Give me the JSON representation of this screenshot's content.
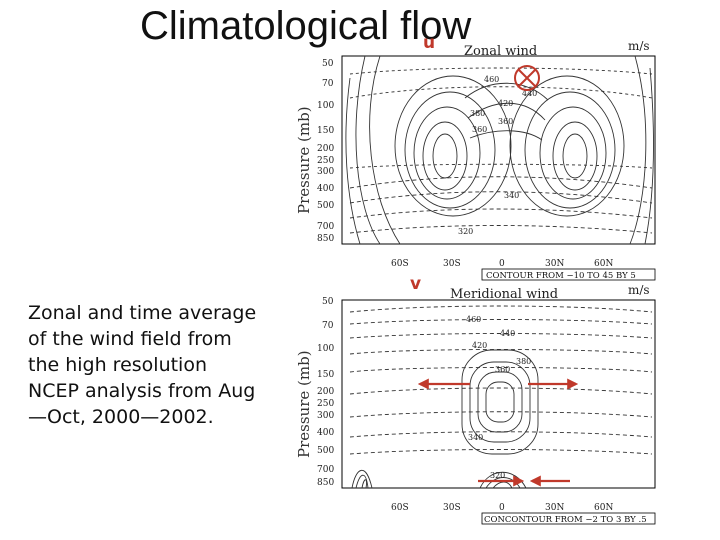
{
  "title": "Climatological flow",
  "caption_lines": [
    "Zonal and time average",
    "of the wind field from",
    "the high resolution",
    "NCEP analysis from Aug",
    "—Oct, 2000—2002."
  ],
  "markers": {
    "top": "u",
    "bottom": "v"
  },
  "panels": [
    {
      "heading": "Zonal wind",
      "units": "m/s",
      "ylabel": "Pressure (mb)",
      "yticks": [
        "50",
        "70",
        "100",
        "150",
        "200",
        "250",
        "300",
        "400",
        "500",
        "700",
        "850"
      ],
      "xticks": [
        "60S",
        "30S",
        "0",
        "30N",
        "60N"
      ],
      "footer": "CONTOUR FROM −10 TO 45 BY 5",
      "contour_labels": [
        "460",
        "420",
        "380",
        "340",
        "320",
        "360",
        "440",
        "360"
      ]
    },
    {
      "heading": "Meridional wind",
      "units": "m/s",
      "ylabel": "Pressure (mb)",
      "yticks": [
        "50",
        "70",
        "100",
        "150",
        "200",
        "250",
        "300",
        "400",
        "500",
        "700",
        "850"
      ],
      "xticks": [
        "60S",
        "30S",
        "0",
        "30N",
        "60N"
      ],
      "footer": "CONCONTOUR FROM −2 TO 3 BY .5",
      "contour_labels": [
        "460",
        "440",
        "420",
        "380",
        "360",
        "340",
        "320"
      ]
    }
  ],
  "colors": {
    "annotation": "#c0392b",
    "contour": "#333333",
    "frame": "#000000"
  }
}
